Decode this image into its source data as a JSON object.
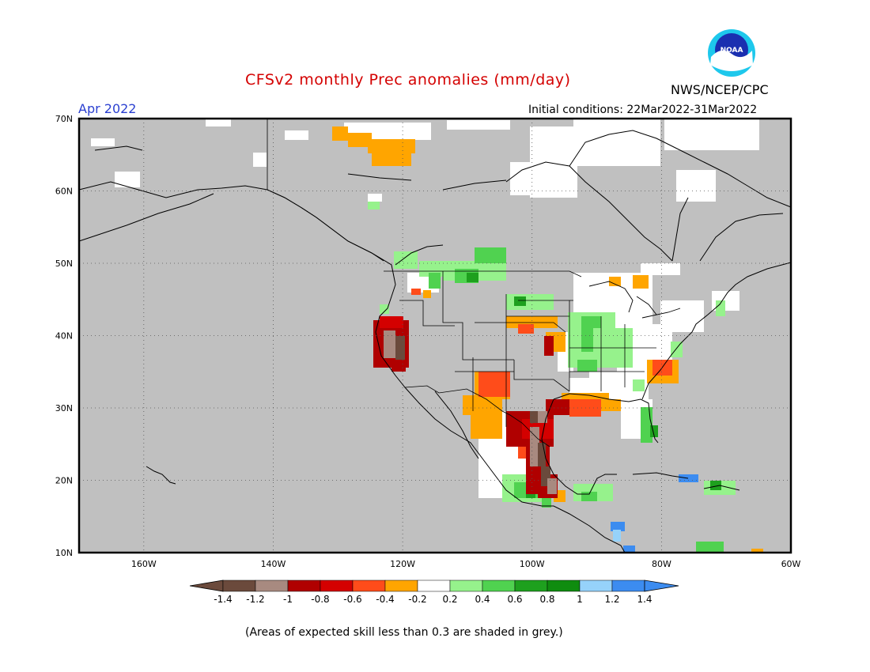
{
  "title": "CFSv2 monthly Prec anomalies (mm/day)",
  "agency": "NWS/NCEP/CPC",
  "logo_text": "NOAA",
  "valid_month": "Apr 2022",
  "initial_conditions": "Initial conditions: 22Mar2022-31Mar2022",
  "footnote": "(Areas of expected skill less than 0.3 are shaded in grey.)",
  "colors": {
    "grey_no_skill": "#c0c0c0",
    "colorbar": [
      "#6b4a3c",
      "#a88a80",
      "#b00000",
      "#d40000",
      "#ff4c1a",
      "#ffa500",
      "#ffffff",
      "#96f28c",
      "#50d250",
      "#1ea01e",
      "#0f8c0f",
      "#96d2fa",
      "#3c8cf0"
    ]
  },
  "map": {
    "lat_labels": [
      "70N",
      "60N",
      "50N",
      "40N",
      "30N",
      "20N",
      "10N"
    ],
    "lon_labels": [
      "160W",
      "140W",
      "120W",
      "100W",
      "80W",
      "60W"
    ]
  },
  "colorbar": {
    "labels": [
      "-1.4",
      "-1.2",
      "-1",
      "-0.8",
      "-0.6",
      "-0.4",
      "-0.2",
      "0.2",
      "0.4",
      "0.6",
      "0.8",
      "1",
      "1.2",
      "1.4"
    ]
  }
}
